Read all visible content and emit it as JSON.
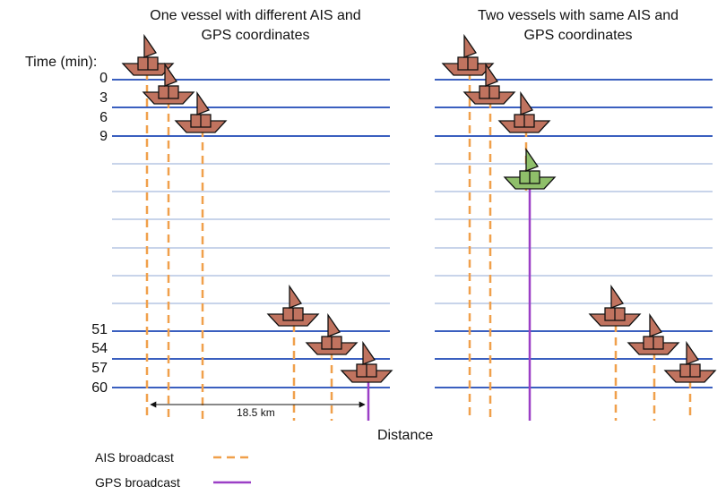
{
  "titles": {
    "left": "One vessel with different AIS and\nGPS coordinates",
    "right": "Two vessels with same AIS and\nGPS coordinates"
  },
  "axis": {
    "time_label": "Time (min):",
    "distance_label": "Distance",
    "time_ticks": [
      "0",
      "3",
      "6",
      "9",
      "51",
      "54",
      "57",
      "60"
    ]
  },
  "measurement": {
    "label": "18.5 km"
  },
  "legend": {
    "ais": "AIS broadcast",
    "gps": "GPS broadcast"
  },
  "colors": {
    "time_line": "#3a5fbf",
    "gap_line": "#c8d4ea",
    "ais": "#f0a04b",
    "gps": "#9b3fc6",
    "vessel": "#c0735f",
    "vessel_alt": "#8fbf6a",
    "outline": "#111111"
  },
  "icons": {
    "vessel": "sailboat-icon",
    "vessel_alt": "green-sailboat-icon"
  }
}
